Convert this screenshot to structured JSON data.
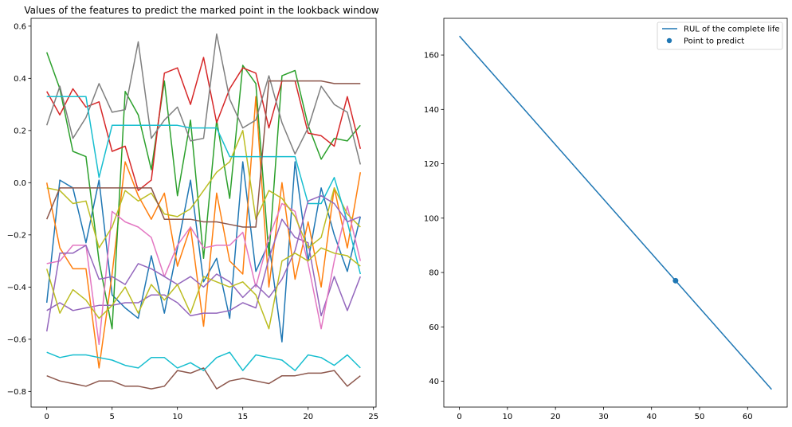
{
  "chart_data": [
    {
      "type": "line",
      "title": "Values of the features to predict the marked point in the lookback window",
      "xlabel": "",
      "ylabel": "",
      "xlim": [
        -1.2,
        25.2
      ],
      "ylim": [
        -0.86,
        0.63
      ],
      "xticks": [
        0,
        5,
        10,
        15,
        20,
        25
      ],
      "yticks": [
        -0.8,
        -0.6,
        -0.4,
        -0.2,
        0.0,
        0.2,
        0.4,
        0.6
      ],
      "ytick_labels": [
        "−0.8",
        "−0.6",
        "−0.4",
        "−0.2",
        "0.0",
        "0.2",
        "0.4",
        "0.6"
      ],
      "grid": false,
      "x": [
        0,
        1,
        2,
        3,
        4,
        5,
        6,
        7,
        8,
        9,
        10,
        11,
        12,
        13,
        14,
        15,
        16,
        17,
        18,
        19,
        20,
        21,
        22,
        23,
        24
      ],
      "series": [
        {
          "color": "#1f77b4",
          "values": [
            -0.46,
            0.01,
            -0.02,
            -0.23,
            0.01,
            -0.43,
            -0.48,
            -0.52,
            -0.28,
            -0.5,
            -0.25,
            0.01,
            -0.38,
            -0.29,
            -0.52,
            0.08,
            -0.34,
            -0.23,
            -0.61,
            0.08,
            -0.3,
            -0.02,
            -0.2,
            -0.34,
            -0.13
          ]
        },
        {
          "color": "#ff7f0e",
          "values": [
            0.0,
            -0.25,
            -0.33,
            -0.33,
            -0.71,
            -0.35,
            0.08,
            -0.05,
            -0.14,
            -0.04,
            -0.32,
            -0.17,
            -0.55,
            -0.04,
            -0.3,
            -0.35,
            0.33,
            -0.4,
            0.0,
            -0.37,
            -0.15,
            -0.4,
            -0.02,
            -0.25,
            0.04
          ]
        },
        {
          "color": "#2ca02c",
          "values": [
            0.5,
            0.36,
            0.12,
            0.1,
            -0.3,
            -0.56,
            0.35,
            0.26,
            0.05,
            0.39,
            -0.05,
            0.24,
            -0.29,
            0.24,
            -0.06,
            0.45,
            0.38,
            -0.28,
            0.41,
            0.43,
            0.22,
            0.09,
            0.17,
            0.16,
            0.22
          ]
        },
        {
          "color": "#d62728",
          "values": [
            0.35,
            0.26,
            0.36,
            0.29,
            0.31,
            0.12,
            0.14,
            -0.03,
            0.01,
            0.42,
            0.44,
            0.3,
            0.48,
            0.23,
            0.36,
            0.44,
            0.42,
            0.21,
            0.39,
            0.39,
            0.19,
            0.18,
            0.14,
            0.33,
            0.13
          ]
        },
        {
          "color": "#9467bd",
          "values": [
            -0.49,
            -0.46,
            -0.49,
            -0.48,
            -0.47,
            -0.47,
            -0.46,
            -0.46,
            -0.43,
            -0.43,
            -0.46,
            -0.51,
            -0.5,
            -0.5,
            -0.49,
            -0.46,
            -0.48,
            -0.29,
            -0.14,
            -0.21,
            -0.23,
            -0.51,
            -0.36,
            -0.49,
            -0.36
          ]
        },
        {
          "color": "#8c564b",
          "values": [
            -0.74,
            -0.76,
            -0.77,
            -0.78,
            -0.76,
            -0.76,
            -0.78,
            -0.78,
            -0.79,
            -0.78,
            -0.72,
            -0.73,
            -0.71,
            -0.79,
            -0.76,
            -0.75,
            -0.76,
            -0.77,
            -0.74,
            -0.74,
            -0.73,
            -0.73,
            -0.72,
            -0.78,
            -0.74
          ]
        },
        {
          "color": "#e377c2",
          "values": [
            -0.31,
            -0.3,
            -0.24,
            -0.24,
            -0.62,
            -0.11,
            -0.15,
            -0.17,
            -0.21,
            -0.36,
            -0.24,
            -0.17,
            -0.25,
            -0.24,
            -0.24,
            -0.19,
            -0.4,
            -0.21,
            -0.08,
            -0.11,
            -0.31,
            -0.56,
            -0.3,
            -0.09,
            -0.3
          ]
        },
        {
          "color": "#7f7f7f",
          "values": [
            0.22,
            0.37,
            0.17,
            0.25,
            0.38,
            0.27,
            0.28,
            0.54,
            0.17,
            0.24,
            0.29,
            0.16,
            0.17,
            0.57,
            0.32,
            0.21,
            0.24,
            0.41,
            0.23,
            0.11,
            0.21,
            0.37,
            0.3,
            0.27,
            0.07
          ]
        },
        {
          "color": "#bcbd22",
          "values": [
            -0.02,
            -0.03,
            -0.08,
            -0.07,
            -0.25,
            -0.17,
            -0.03,
            -0.07,
            -0.04,
            -0.12,
            -0.13,
            -0.1,
            -0.03,
            0.04,
            0.08,
            0.2,
            -0.14,
            -0.03,
            -0.06,
            -0.13,
            -0.25,
            -0.21,
            -0.02,
            -0.12,
            -0.17
          ]
        },
        {
          "color": "#17becf",
          "values": [
            0.33,
            0.33,
            0.33,
            0.33,
            0.02,
            0.22,
            0.22,
            0.22,
            0.22,
            0.22,
            0.22,
            0.21,
            0.21,
            0.21,
            0.1,
            0.1,
            0.1,
            0.1,
            0.1,
            0.1,
            -0.08,
            -0.08,
            0.02,
            -0.15,
            -0.35
          ]
        }
      ],
      "extra_series": [
        {
          "color": "#17becf",
          "values": [
            -0.65,
            -0.67,
            -0.66,
            -0.66,
            -0.67,
            -0.68,
            -0.7,
            -0.71,
            -0.67,
            -0.67,
            -0.71,
            -0.69,
            -0.72,
            -0.67,
            -0.65,
            -0.72,
            -0.66,
            -0.67,
            -0.68,
            -0.72,
            -0.66,
            -0.67,
            -0.7,
            -0.66,
            -0.71
          ]
        },
        {
          "color": "#8c564b",
          "values": [
            -0.14,
            -0.02,
            -0.02,
            -0.02,
            -0.02,
            -0.02,
            -0.02,
            -0.02,
            -0.02,
            -0.14,
            -0.14,
            -0.14,
            -0.15,
            -0.15,
            -0.16,
            -0.17,
            -0.17,
            0.39,
            0.39,
            0.39,
            0.39,
            0.39,
            0.38,
            0.38,
            0.38
          ]
        },
        {
          "color": "#9467bd",
          "values": [
            -0.57,
            -0.27,
            -0.27,
            -0.24,
            -0.37,
            -0.36,
            -0.39,
            -0.31,
            -0.33,
            -0.36,
            -0.39,
            -0.36,
            -0.4,
            -0.35,
            -0.38,
            -0.44,
            -0.39,
            -0.44,
            -0.37,
            -0.26,
            -0.07,
            -0.05,
            -0.08,
            -0.15,
            -0.13
          ]
        },
        {
          "color": "#bcbd22",
          "values": [
            -0.33,
            -0.5,
            -0.41,
            -0.45,
            -0.52,
            -0.47,
            -0.4,
            -0.5,
            -0.39,
            -0.45,
            -0.39,
            -0.5,
            -0.36,
            -0.38,
            -0.4,
            -0.38,
            -0.43,
            -0.56,
            -0.3,
            -0.27,
            -0.3,
            -0.25,
            -0.27,
            -0.28,
            -0.32
          ]
        }
      ]
    },
    {
      "type": "line",
      "title": "",
      "xlabel": "",
      "ylabel": "",
      "xlim": [
        -3.25,
        68.25
      ],
      "ylim": [
        30.5,
        173.5
      ],
      "xticks": [
        0,
        10,
        20,
        30,
        40,
        50,
        60
      ],
      "yticks": [
        40,
        60,
        80,
        100,
        120,
        140,
        160
      ],
      "grid": false,
      "legend_position": "top-right",
      "series": [
        {
          "name": "RUL of the complete life",
          "color": "#1f77b4",
          "x": [
            0,
            65
          ],
          "values": [
            167,
            37
          ]
        }
      ],
      "points": [
        {
          "name": "Point to predict",
          "color": "#1f77b4",
          "x": 45,
          "y": 77
        }
      ]
    }
  ]
}
